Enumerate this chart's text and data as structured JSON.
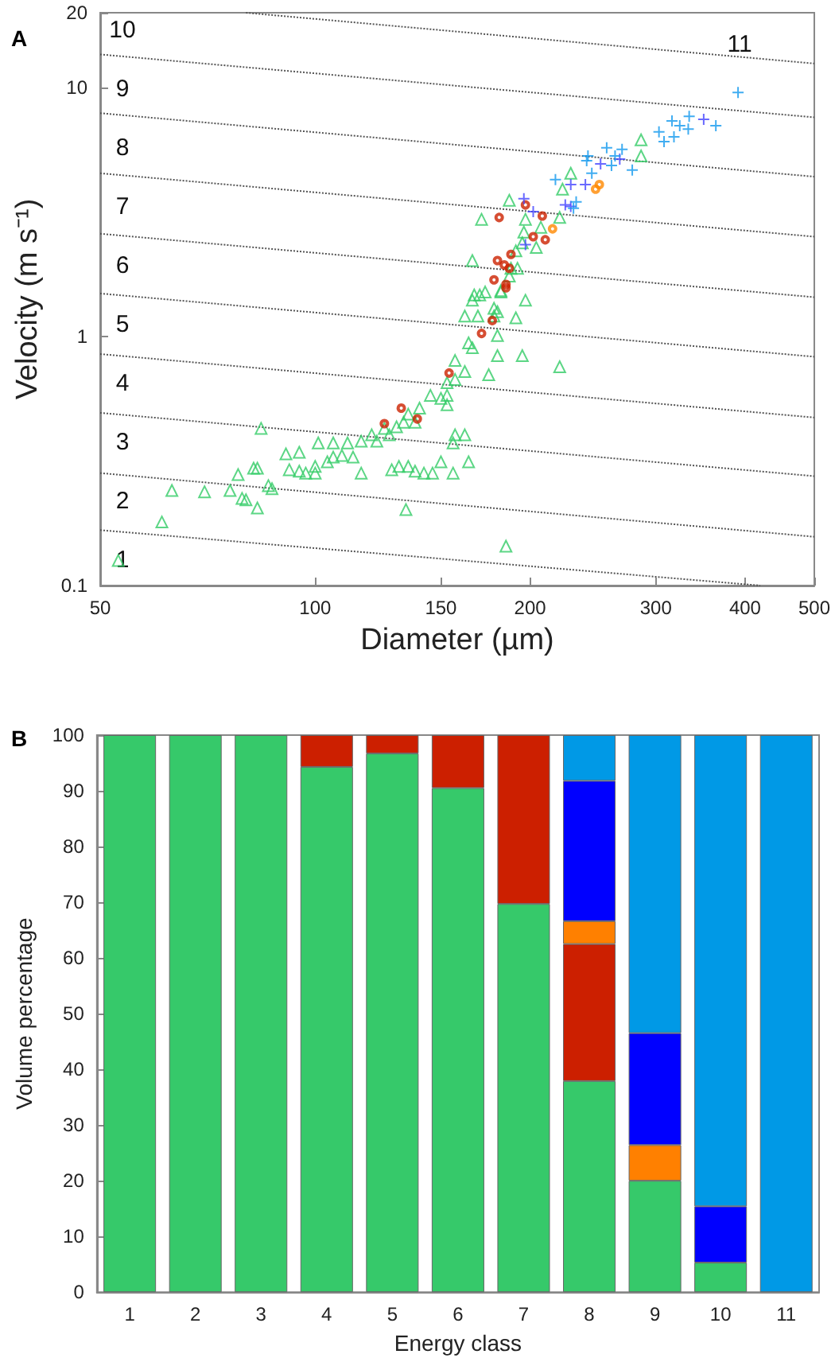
{
  "chart_data": [
    {
      "type": "scatter",
      "title": "A",
      "xlabel": "Diameter (µm)",
      "ylabel": "Velocity (m s⁻¹)",
      "log": "xy",
      "grid": false,
      "xlim": [
        50,
        500
      ],
      "ylim": [
        0.1,
        20
      ],
      "xticks": [
        50,
        100,
        150,
        200,
        300,
        400,
        500
      ],
      "yticks": [
        0.1,
        1,
        10,
        20
      ],
      "series": [
        {
          "type": "line",
          "color": "#555555",
          "line_style": "dotted",
          "marker": "none",
          "x": [
            50,
            420
          ],
          "values": [
            0.167,
            0.1
          ]
        },
        {
          "type": "line",
          "color": "#555555",
          "line_style": "dotted",
          "marker": "none",
          "x": [
            50,
            500
          ],
          "values": [
            0.283,
            0.157
          ]
        },
        {
          "type": "line",
          "color": "#555555",
          "line_style": "dotted",
          "marker": "none",
          "x": [
            50,
            500
          ],
          "values": [
            0.494,
            0.275
          ]
        },
        {
          "type": "line",
          "color": "#555555",
          "line_style": "dotted",
          "marker": "none",
          "x": [
            50,
            500
          ],
          "values": [
            0.851,
            0.473
          ]
        },
        {
          "type": "line",
          "color": "#555555",
          "line_style": "dotted",
          "marker": "none",
          "x": [
            50,
            500
          ],
          "values": [
            1.49,
            0.83
          ]
        },
        {
          "type": "line",
          "color": "#555555",
          "line_style": "dotted",
          "marker": "none",
          "x": [
            50,
            500
          ],
          "values": [
            2.59,
            1.44
          ]
        },
        {
          "type": "line",
          "color": "#555555",
          "line_style": "dotted",
          "marker": "none",
          "x": [
            50,
            500
          ],
          "values": [
            4.53,
            2.52
          ]
        },
        {
          "type": "line",
          "color": "#555555",
          "line_style": "dotted",
          "marker": "none",
          "x": [
            50,
            500
          ],
          "values": [
            7.9,
            4.39
          ]
        },
        {
          "type": "line",
          "color": "#555555",
          "line_style": "dotted",
          "marker": "none",
          "x": [
            50,
            500
          ],
          "values": [
            13.6,
            7.6
          ]
        },
        {
          "type": "line",
          "color": "#555555",
          "line_style": "dotted",
          "marker": "none",
          "x": [
            80,
            500
          ],
          "values": [
            20,
            12.5
          ]
        },
        {
          "type": "scatter",
          "color": "#33cc66",
          "marker": "triangle",
          "x": [
            53,
            61,
            63,
            70,
            76,
            79,
            80,
            83,
            78,
            82,
            83,
            84,
            86,
            87,
            91,
            92,
            95,
            95,
            97,
            100,
            100,
            101,
            104,
            106,
            106,
            109,
            111,
            113,
            116,
            116,
            120,
            125,
            127,
            130,
            133,
            128,
            131,
            135,
            134,
            138,
            142,
            146,
            150,
            156,
            156,
            157,
            162,
            164,
            185,
            122,
            135,
            140,
            145,
            150,
            153,
            153,
            138,
            153,
            157,
            157,
            162,
            166,
            164,
            175,
            180,
            195,
            220,
            180,
            162,
            169,
            178,
            180,
            191,
            197,
            170,
            182,
            166,
            166,
            167,
            173,
            178,
            182,
            187,
            188,
            192,
            191,
            195,
            196,
            197,
            187,
            171,
            204,
            207,
            220,
            222,
            228,
            286,
            286
          ],
          "values": [
            0.126,
            0.18,
            0.241,
            0.238,
            0.241,
            0.224,
            0.221,
            0.205,
            0.279,
            0.296,
            0.296,
            0.428,
            0.252,
            0.245,
            0.338,
            0.292,
            0.288,
            0.343,
            0.283,
            0.283,
            0.301,
            0.374,
            0.314,
            0.328,
            0.374,
            0.333,
            0.374,
            0.328,
            0.283,
            0.38,
            0.403,
            0.428,
            0.403,
            0.434,
            0.453,
            0.292,
            0.301,
            0.301,
            0.202,
            0.288,
            0.283,
            0.283,
            0.314,
            0.283,
            0.374,
            0.403,
            0.403,
            0.314,
            0.144,
            0.38,
            0.488,
            0.516,
            0.581,
            0.565,
            0.581,
            0.532,
            0.453,
            0.653,
            0.673,
            0.802,
            0.724,
            0.902,
            0.944,
            0.703,
            0.839,
            0.839,
            0.757,
            1.01,
            1.21,
            1.21,
            1.21,
            1.26,
            1.19,
            1.4,
            1.47,
            1.51,
            1.4,
            2.02,
            1.47,
            1.51,
            1.3,
            1.53,
            1.75,
            1.88,
            1.88,
            2.21,
            2.38,
            2.63,
            2.96,
            3.53,
            2.96,
            2.28,
            2.75,
            3.01,
            3.91,
            4.53,
            6.17,
            5.32
          ]
        },
        {
          "type": "scatter",
          "color": "#cc2200",
          "marker": "circle",
          "x": [
            125,
            132,
            139,
            154,
            171,
            177,
            185,
            181,
            197,
            208,
            188,
            202,
            210,
            180,
            184,
            187,
            178,
            185
          ],
          "values": [
            0.447,
            0.516,
            0.467,
            0.714,
            1.03,
            1.16,
            1.57,
            3.01,
            3.38,
            3.05,
            2.14,
            2.52,
            2.45,
            2.02,
            1.94,
            1.88,
            1.69,
            1.62
          ]
        },
        {
          "type": "scatter",
          "color": "#ff8800",
          "marker": "circle",
          "x": [
            215,
            250,
            247
          ],
          "values": [
            2.71,
            4.08,
            3.91
          ]
        },
        {
          "type": "scatter",
          "color": "#4444ff",
          "marker": "cross",
          "x": [
            196,
            202,
            197,
            224,
            228,
            228,
            239,
            251,
            267,
            350
          ],
          "values": [
            3.58,
            3.18,
            2.34,
            3.38,
            3.33,
            4.08,
            4.08,
            4.94,
            5.16,
            7.46
          ]
        },
        {
          "type": "scatter",
          "color": "#1199ee",
          "marker": "cross",
          "x": [
            217,
            230,
            232,
            244,
            240,
            241,
            256,
            263,
            260,
            269,
            278,
            303,
            308,
            316,
            318,
            324,
            333,
            334,
            364,
            391
          ],
          "values": [
            4.27,
            3.28,
            3.48,
            4.53,
            5.09,
            5.32,
            5.73,
            5.32,
            4.87,
            5.65,
            4.67,
            6.64,
            6.07,
            7.35,
            6.35,
            7.03,
            6.82,
            7.67,
            7.03,
            9.57
          ]
        }
      ],
      "annotations": [
        "1",
        "2",
        "3",
        "4",
        "5",
        "6",
        "7",
        "8",
        "9",
        "10",
        "11"
      ]
    },
    {
      "type": "bar",
      "title": "B",
      "xlabel": "Energy class",
      "ylabel": "Volume percentage",
      "stacked": true,
      "grid": false,
      "categories": [
        "1",
        "2",
        "3",
        "4",
        "5",
        "6",
        "7",
        "8",
        "9",
        "10",
        "11"
      ],
      "ylim": [
        0,
        100
      ],
      "yticks": [
        0,
        10,
        20,
        30,
        40,
        50,
        60,
        70,
        80,
        90,
        100
      ],
      "series": [
        {
          "color": "#36c96a",
          "values": [
            100,
            100,
            100,
            94.3,
            96.7,
            90.5,
            69.7,
            37.9,
            20,
            5.3,
            null
          ]
        },
        {
          "color": "#cc1f00",
          "values": [
            null,
            null,
            null,
            5.7,
            3.3,
            9.5,
            30.3,
            24.6,
            null,
            null,
            null
          ]
        },
        {
          "color": "#ff8000",
          "values": [
            null,
            null,
            null,
            null,
            null,
            null,
            null,
            4.1,
            6.4,
            null,
            null
          ]
        },
        {
          "color": "#0000ff",
          "values": [
            null,
            null,
            null,
            null,
            null,
            null,
            null,
            25.2,
            20.1,
            10.1,
            null
          ]
        },
        {
          "color": "#0099e6",
          "values": [
            null,
            null,
            null,
            null,
            null,
            null,
            null,
            8.2,
            53.5,
            84.6,
            100
          ]
        }
      ]
    }
  ]
}
